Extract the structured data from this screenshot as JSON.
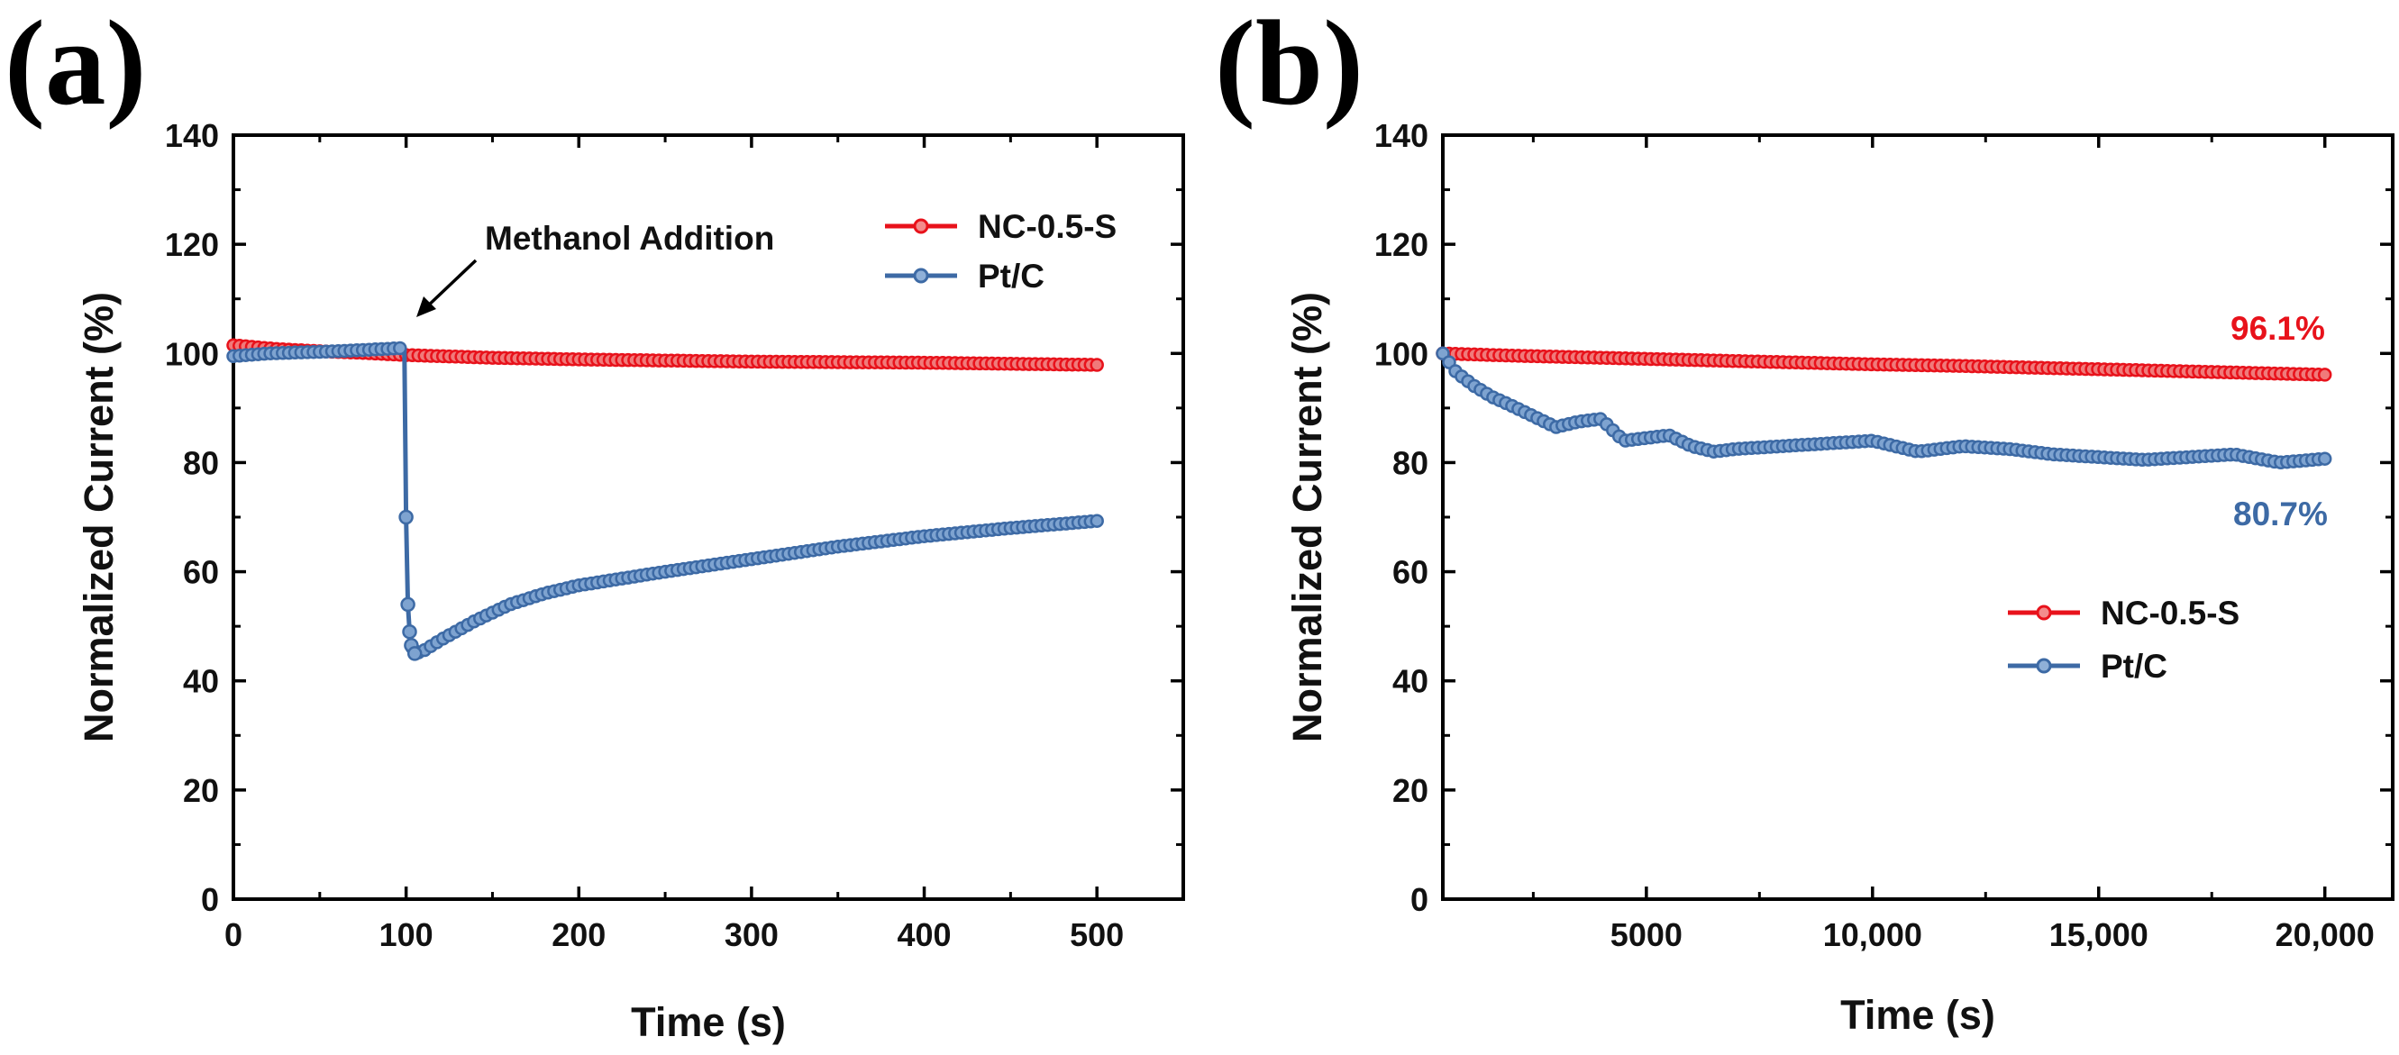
{
  "colors": {
    "nc": "#e8121b",
    "ptc": "#3d6aa5",
    "axis": "#000000"
  },
  "panels": [
    {
      "id": "a",
      "label": "(a)",
      "annotation": "Methanol Addition",
      "end_labels": [],
      "legend_position": "top-right"
    },
    {
      "id": "b",
      "label": "(b)",
      "annotation": "",
      "end_labels": [
        {
          "text": "96.1%",
          "series": "NC-0.5-S"
        },
        {
          "text": "80.7%",
          "series": "Pt/C"
        }
      ],
      "legend_position": "center-right"
    }
  ],
  "chart_data": [
    {
      "type": "line",
      "title": "",
      "xlabel": "Time (s)",
      "ylabel": "Normalized Current (%)",
      "xlim": [
        0,
        550
      ],
      "ylim": [
        0,
        140
      ],
      "xticks": [
        0,
        100,
        200,
        300,
        400,
        500
      ],
      "xtick_labels": [
        "0",
        "100",
        "200",
        "300",
        "400",
        "500"
      ],
      "yticks": [
        0,
        20,
        40,
        60,
        80,
        100,
        120,
        140
      ],
      "ytick_labels": [
        "0",
        "20",
        "40",
        "60",
        "80",
        "100",
        "120",
        "140"
      ],
      "annotation": {
        "text": "Methanol Addition",
        "x": 100,
        "y": 101
      },
      "series": [
        {
          "name": "NC-0.5-S",
          "color": "#e8121b",
          "x": [
            0,
            25,
            50,
            75,
            100,
            150,
            200,
            250,
            300,
            350,
            400,
            450,
            500
          ],
          "y": [
            101.5,
            100.8,
            100.4,
            100.1,
            99.7,
            99.2,
            98.9,
            98.7,
            98.5,
            98.4,
            98.3,
            98.1,
            97.9
          ]
        },
        {
          "name": "Pt/C",
          "color": "#3d6aa5",
          "x": [
            0,
            20,
            40,
            60,
            80,
            99,
            100,
            101,
            102,
            103,
            105,
            110,
            120,
            140,
            160,
            180,
            200,
            250,
            300,
            350,
            400,
            450,
            500
          ],
          "y": [
            99.5,
            100.0,
            100.2,
            100.4,
            100.7,
            101.0,
            70.0,
            54.0,
            49.0,
            46.5,
            45.0,
            45.5,
            47.5,
            51.0,
            54.0,
            56.0,
            57.5,
            60.0,
            62.3,
            64.6,
            66.5,
            68.0,
            69.3
          ]
        }
      ]
    },
    {
      "type": "line",
      "title": "",
      "xlabel": "Time (s)",
      "ylabel": "Normalized Current (%)",
      "xlim": [
        500,
        21500
      ],
      "ylim": [
        0,
        140
      ],
      "xticks": [
        5000,
        10000,
        15000,
        20000
      ],
      "xtick_labels": [
        "5000",
        "10,000",
        "15,000",
        "20,000"
      ],
      "yticks": [
        0,
        20,
        40,
        60,
        80,
        100,
        120,
        140
      ],
      "ytick_labels": [
        "0",
        "20",
        "40",
        "60",
        "80",
        "100",
        "120",
        "140"
      ],
      "series": [
        {
          "name": "NC-0.5-S",
          "color": "#e8121b",
          "x": [
            500,
            2000,
            4000,
            6000,
            8000,
            10000,
            12000,
            14000,
            16000,
            18000,
            20000
          ],
          "y": [
            100.0,
            99.6,
            99.2,
            98.8,
            98.4,
            98.0,
            97.7,
            97.3,
            96.9,
            96.5,
            96.1
          ]
        },
        {
          "name": "Pt/C",
          "color": "#3d6aa5",
          "x": [
            500,
            800,
            1200,
            1600,
            2000,
            2500,
            3000,
            3500,
            4000,
            4500,
            5000,
            5500,
            6000,
            6500,
            7000,
            8000,
            9000,
            10000,
            11000,
            12000,
            13000,
            14000,
            15000,
            16000,
            17000,
            18000,
            19000,
            20000
          ],
          "y": [
            100.0,
            96.5,
            94.0,
            92.0,
            90.5,
            88.5,
            86.5,
            87.5,
            88.0,
            84.0,
            84.5,
            85.0,
            83.0,
            82.0,
            82.5,
            83.0,
            83.5,
            84.0,
            82.0,
            83.0,
            82.5,
            81.5,
            81.0,
            80.5,
            81.0,
            81.5,
            80.0,
            80.7
          ]
        }
      ]
    }
  ]
}
